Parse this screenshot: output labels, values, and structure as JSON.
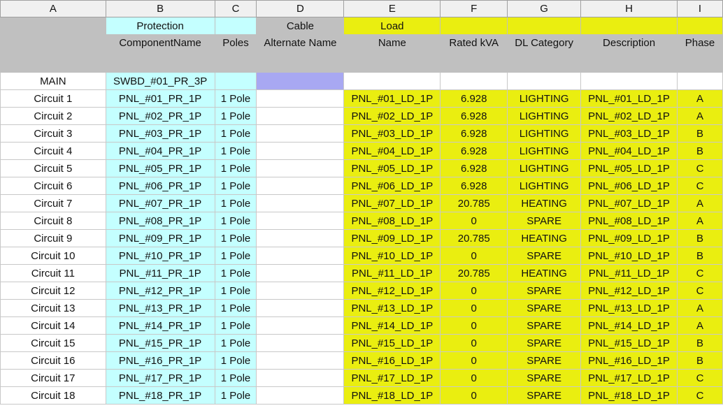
{
  "columns": [
    "A",
    "B",
    "C",
    "D",
    "E",
    "F",
    "G",
    "H",
    "I"
  ],
  "groups": {
    "protection": "Protection",
    "cable": "Cable",
    "load": "Load"
  },
  "headers": [
    "",
    "ComponentName",
    "Poles",
    "Alternate Name",
    "Name",
    "Rated kVA",
    "DL Category",
    "Description",
    "Phase"
  ],
  "main": {
    "label": "MAIN",
    "component": "SWBD_#01_PR_3P"
  },
  "colors": {
    "protection": "#c4ffff",
    "load": "#eaee10",
    "cable_main": "#a8a8f2",
    "header": "#c0c0c0"
  },
  "rows": [
    [
      "Circuit 1",
      "PNL_#01_PR_1P",
      "1 Pole",
      "",
      "PNL_#01_LD_1P",
      "6.928",
      "LIGHTING",
      "PNL_#01_LD_1P",
      "A"
    ],
    [
      "Circuit 2",
      "PNL_#02_PR_1P",
      "1 Pole",
      "",
      "PNL_#02_LD_1P",
      "6.928",
      "LIGHTING",
      "PNL_#02_LD_1P",
      "A"
    ],
    [
      "Circuit 3",
      "PNL_#03_PR_1P",
      "1 Pole",
      "",
      "PNL_#03_LD_1P",
      "6.928",
      "LIGHTING",
      "PNL_#03_LD_1P",
      "B"
    ],
    [
      "Circuit 4",
      "PNL_#04_PR_1P",
      "1 Pole",
      "",
      "PNL_#04_LD_1P",
      "6.928",
      "LIGHTING",
      "PNL_#04_LD_1P",
      "B"
    ],
    [
      "Circuit 5",
      "PNL_#05_PR_1P",
      "1 Pole",
      "",
      "PNL_#05_LD_1P",
      "6.928",
      "LIGHTING",
      "PNL_#05_LD_1P",
      "C"
    ],
    [
      "Circuit 6",
      "PNL_#06_PR_1P",
      "1 Pole",
      "",
      "PNL_#06_LD_1P",
      "6.928",
      "LIGHTING",
      "PNL_#06_LD_1P",
      "C"
    ],
    [
      "Circuit 7",
      "PNL_#07_PR_1P",
      "1 Pole",
      "",
      "PNL_#07_LD_1P",
      "20.785",
      "HEATING",
      "PNL_#07_LD_1P",
      "A"
    ],
    [
      "Circuit 8",
      "PNL_#08_PR_1P",
      "1 Pole",
      "",
      "PNL_#08_LD_1P",
      "0",
      "SPARE",
      "PNL_#08_LD_1P",
      "A"
    ],
    [
      "Circuit 9",
      "PNL_#09_PR_1P",
      "1 Pole",
      "",
      "PNL_#09_LD_1P",
      "20.785",
      "HEATING",
      "PNL_#09_LD_1P",
      "B"
    ],
    [
      "Circuit 10",
      "PNL_#10_PR_1P",
      "1 Pole",
      "",
      "PNL_#10_LD_1P",
      "0",
      "SPARE",
      "PNL_#10_LD_1P",
      "B"
    ],
    [
      "Circuit 11",
      "PNL_#11_PR_1P",
      "1 Pole",
      "",
      "PNL_#11_LD_1P",
      "20.785",
      "HEATING",
      "PNL_#11_LD_1P",
      "C"
    ],
    [
      "Circuit 12",
      "PNL_#12_PR_1P",
      "1 Pole",
      "",
      "PNL_#12_LD_1P",
      "0",
      "SPARE",
      "PNL_#12_LD_1P",
      "C"
    ],
    [
      "Circuit 13",
      "PNL_#13_PR_1P",
      "1 Pole",
      "",
      "PNL_#13_LD_1P",
      "0",
      "SPARE",
      "PNL_#13_LD_1P",
      "A"
    ],
    [
      "Circuit 14",
      "PNL_#14_PR_1P",
      "1 Pole",
      "",
      "PNL_#14_LD_1P",
      "0",
      "SPARE",
      "PNL_#14_LD_1P",
      "A"
    ],
    [
      "Circuit 15",
      "PNL_#15_PR_1P",
      "1 Pole",
      "",
      "PNL_#15_LD_1P",
      "0",
      "SPARE",
      "PNL_#15_LD_1P",
      "B"
    ],
    [
      "Circuit 16",
      "PNL_#16_PR_1P",
      "1 Pole",
      "",
      "PNL_#16_LD_1P",
      "0",
      "SPARE",
      "PNL_#16_LD_1P",
      "B"
    ],
    [
      "Circuit 17",
      "PNL_#17_PR_1P",
      "1 Pole",
      "",
      "PNL_#17_LD_1P",
      "0",
      "SPARE",
      "PNL_#17_LD_1P",
      "C"
    ],
    [
      "Circuit 18",
      "PNL_#18_PR_1P",
      "1 Pole",
      "",
      "PNL_#18_LD_1P",
      "0",
      "SPARE",
      "PNL_#18_LD_1P",
      "C"
    ]
  ]
}
